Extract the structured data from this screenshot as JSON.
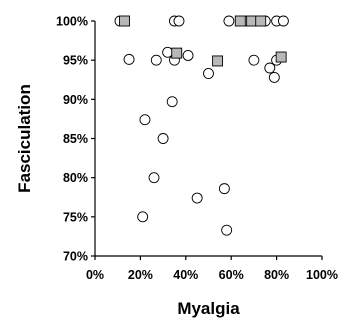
{
  "chart_data": {
    "type": "scatter",
    "xlabel": "Myalgia",
    "ylabel": "Fasciculation",
    "xlim": [
      0,
      100
    ],
    "ylim": [
      70,
      100
    ],
    "x_ticks": [
      "0%",
      "20%",
      "40%",
      "60%",
      "80%",
      "100%"
    ],
    "y_ticks": [
      "70%",
      "75%",
      "80%",
      "85%",
      "90%",
      "95%",
      "100%"
    ],
    "grid": false,
    "series": [
      {
        "marker": "circle",
        "color": "#ffffff",
        "points": [
          {
            "x": 11,
            "y": 100
          },
          {
            "x": 35,
            "y": 100
          },
          {
            "x": 37,
            "y": 100
          },
          {
            "x": 59,
            "y": 100
          },
          {
            "x": 67,
            "y": 100
          },
          {
            "x": 75,
            "y": 100
          },
          {
            "x": 80,
            "y": 100
          },
          {
            "x": 83,
            "y": 100
          },
          {
            "x": 15,
            "y": 95.1
          },
          {
            "x": 27,
            "y": 95
          },
          {
            "x": 32,
            "y": 96
          },
          {
            "x": 35,
            "y": 95
          },
          {
            "x": 41,
            "y": 95.6
          },
          {
            "x": 70,
            "y": 95
          },
          {
            "x": 80,
            "y": 95
          },
          {
            "x": 50,
            "y": 93.3
          },
          {
            "x": 77,
            "y": 94
          },
          {
            "x": 79,
            "y": 92.8
          },
          {
            "x": 34,
            "y": 89.7
          },
          {
            "x": 22,
            "y": 87.4
          },
          {
            "x": 30,
            "y": 85
          },
          {
            "x": 26,
            "y": 80
          },
          {
            "x": 57,
            "y": 78.6
          },
          {
            "x": 45,
            "y": 77.4
          },
          {
            "x": 21,
            "y": 75
          },
          {
            "x": 58,
            "y": 73.3
          }
        ]
      },
      {
        "marker": "square",
        "color": "#b8b8b8",
        "points": [
          {
            "x": 13,
            "y": 100
          },
          {
            "x": 64,
            "y": 100
          },
          {
            "x": 69,
            "y": 100
          },
          {
            "x": 73,
            "y": 100
          },
          {
            "x": 36,
            "y": 95.9
          },
          {
            "x": 54,
            "y": 94.9
          },
          {
            "x": 82,
            "y": 95.4
          }
        ]
      }
    ]
  }
}
